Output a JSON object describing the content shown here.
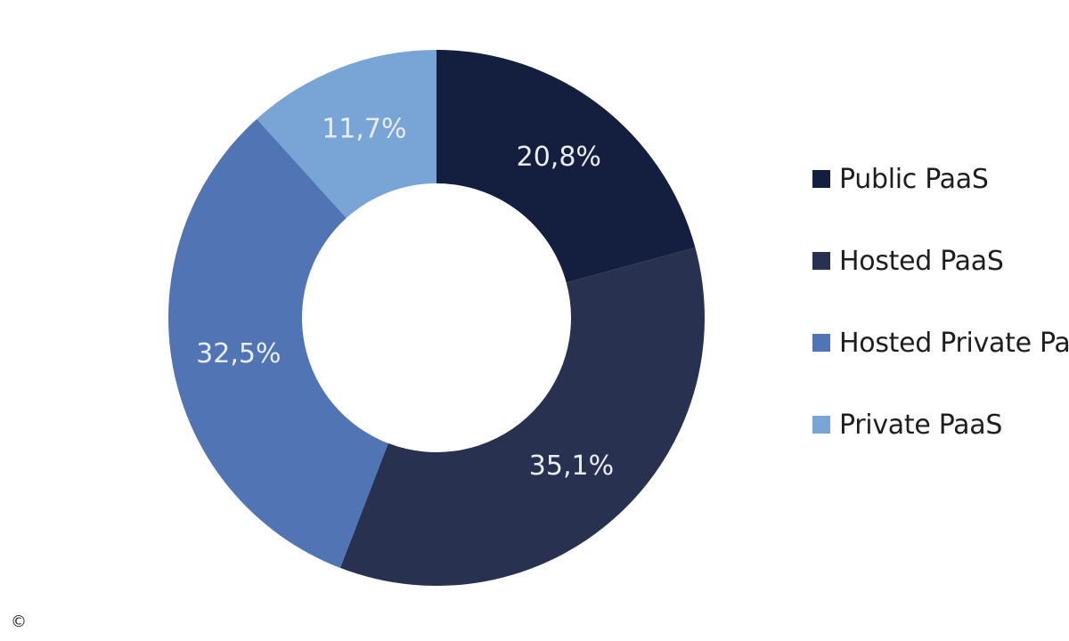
{
  "chart_data": {
    "type": "pie",
    "donut": true,
    "title": "",
    "legend_position": "right",
    "series": [
      {
        "name": "Public PaaS",
        "value": 20.8,
        "label": "20,8%",
        "color": "#141e3f"
      },
      {
        "name": "Hosted PaaS",
        "value": 35.1,
        "label": "35,1%",
        "color": "#283150"
      },
      {
        "name": "Hosted Private PaaS",
        "value": 32.5,
        "label": "32,5%",
        "color": "#5074b4"
      },
      {
        "name": "Private PaaS",
        "value": 11.7,
        "label": "11,7%",
        "color": "#78a4d6"
      }
    ]
  },
  "footer": {
    "copyright": "©"
  }
}
